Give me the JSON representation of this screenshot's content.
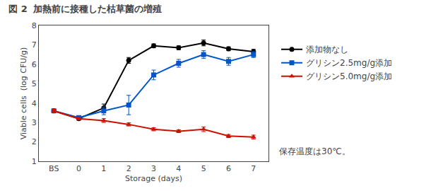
{
  "chart_data": {
    "type": "line",
    "title": "図 2",
    "subtitle": "加熱前に接種した枯草菌の増殖",
    "x_label": "Storage (days)",
    "y_label": "Viable cells  (log CFU/g)",
    "categories": [
      "BS",
      "0",
      "1",
      "2",
      "3",
      "4",
      "5",
      "6",
      "7"
    ],
    "series": [
      {
        "name": "添加物なし",
        "color": "#000000",
        "marker": "circle",
        "values": [
          3.6,
          3.2,
          3.75,
          6.2,
          6.95,
          6.85,
          7.1,
          6.8,
          6.65
        ],
        "yerr": [
          0.08,
          0.07,
          0.2,
          0.15,
          0.1,
          0.1,
          0.15,
          0.1,
          0.12
        ]
      },
      {
        "name": "グリシン2.5mg/g添加",
        "color": "#0055cc",
        "marker": "square",
        "values": [
          3.6,
          3.25,
          3.6,
          3.9,
          5.45,
          6.05,
          6.5,
          6.15,
          6.5
        ],
        "yerr": [
          0.08,
          0.07,
          0.2,
          0.5,
          0.25,
          0.2,
          0.2,
          0.2,
          0.15
        ]
      },
      {
        "name": "グリシン5.0mg/g添加",
        "color": "#cc1100",
        "marker": "triangle-up",
        "values": [
          3.6,
          3.2,
          3.1,
          2.9,
          2.65,
          2.55,
          2.65,
          2.3,
          2.25
        ],
        "yerr": [
          0.08,
          0.07,
          0.1,
          0.08,
          0.08,
          0.07,
          0.12,
          0.08,
          0.1
        ]
      }
    ],
    "ylim": [
      1,
      8
    ],
    "yticks": [
      1,
      2,
      3,
      4,
      5,
      6,
      7,
      8
    ],
    "grid": false,
    "legend": "right",
    "annotations": [
      {
        "text": "保存温度は30℃。"
      }
    ]
  }
}
